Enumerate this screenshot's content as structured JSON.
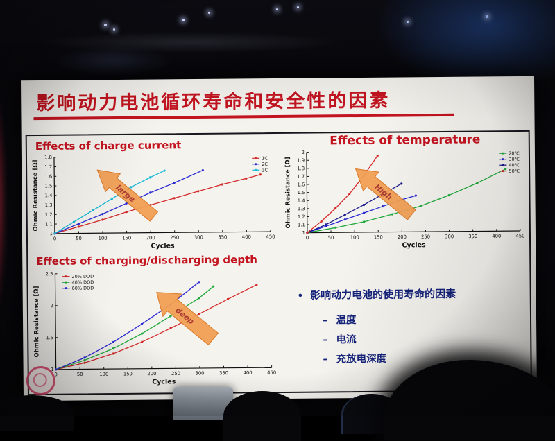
{
  "slide": {
    "title": "影响动力电池循环寿命和安全性的因素",
    "bullets": {
      "marker": "•",
      "dash": "–",
      "heading": "影响动力电池的使用寿命的因素",
      "items": [
        "温度",
        "电流",
        "充放电深度"
      ]
    }
  },
  "chart_data": [
    {
      "type": "line",
      "title": "Effects of charge current",
      "xlabel": "Cycles",
      "ylabel": "Ohmic Resistance [Ω]",
      "xlim": [
        0,
        450
      ],
      "ylim": [
        1,
        1.8
      ],
      "x_tick_step": 50,
      "y_tick_step": 0.1,
      "legend_position": "top-right",
      "grid": false,
      "arrow": {
        "label": "large",
        "fill": "#f2a055",
        "stroke": "#d9731f",
        "text_color": "#a8322a"
      },
      "series": [
        {
          "name": "1C",
          "color": "#d42a2a",
          "points": [
            [
              0,
              1
            ],
            [
              50,
              1.07
            ],
            [
              100,
              1.14
            ],
            [
              150,
              1.22
            ],
            [
              200,
              1.29
            ],
            [
              250,
              1.36
            ],
            [
              300,
              1.43
            ],
            [
              350,
              1.5
            ],
            [
              400,
              1.56
            ],
            [
              430,
              1.6
            ]
          ]
        },
        {
          "name": "2C",
          "color": "#2a2ad4",
          "points": [
            [
              0,
              1
            ],
            [
              50,
              1.1
            ],
            [
              100,
              1.2
            ],
            [
              150,
              1.31
            ],
            [
              200,
              1.42
            ],
            [
              250,
              1.52
            ],
            [
              310,
              1.65
            ]
          ]
        },
        {
          "name": "3C",
          "color": "#18b8d8",
          "points": [
            [
              0,
              1
            ],
            [
              40,
              1.12
            ],
            [
              80,
              1.24
            ],
            [
              120,
              1.36
            ],
            [
              160,
              1.48
            ],
            [
              200,
              1.58
            ],
            [
              230,
              1.65
            ]
          ]
        }
      ]
    },
    {
      "type": "line",
      "title": "Effects of temperature",
      "xlabel": "Cycles",
      "ylabel": "Ohmic Resistance [Ω]",
      "xlim": [
        0,
        450
      ],
      "ylim": [
        1,
        2
      ],
      "x_tick_step": 50,
      "y_tick_step": 0.1,
      "legend_position": "top-right",
      "grid": false,
      "arrow": {
        "label": "High",
        "fill": "#f2a055",
        "stroke": "#d9731f",
        "text_color": "#a8322a"
      },
      "series": [
        {
          "name": "20℃",
          "color": "#1faa3c",
          "points": [
            [
              0,
              1
            ],
            [
              60,
              1.06
            ],
            [
              120,
              1.13
            ],
            [
              180,
              1.22
            ],
            [
              240,
              1.32
            ],
            [
              300,
              1.45
            ],
            [
              360,
              1.6
            ],
            [
              420,
              1.77
            ]
          ]
        },
        {
          "name": "30℃",
          "color": "#2a2ad4",
          "points": [
            [
              0,
              1
            ],
            [
              40,
              1.08
            ],
            [
              80,
              1.16
            ],
            [
              120,
              1.24
            ],
            [
              160,
              1.32
            ],
            [
              200,
              1.4
            ],
            [
              230,
              1.45
            ]
          ]
        },
        {
          "name": "40℃",
          "color": "#1a1a8c",
          "points": [
            [
              0,
              1
            ],
            [
              40,
              1.1
            ],
            [
              80,
              1.22
            ],
            [
              120,
              1.34
            ],
            [
              160,
              1.47
            ],
            [
              200,
              1.6
            ]
          ]
        },
        {
          "name": "50℃",
          "color": "#d42a2a",
          "points": [
            [
              0,
              1
            ],
            [
              30,
              1.14
            ],
            [
              60,
              1.3
            ],
            [
              90,
              1.48
            ],
            [
              120,
              1.7
            ],
            [
              150,
              1.95
            ]
          ]
        }
      ]
    },
    {
      "type": "line",
      "title": "Effects of charging/discharging depth",
      "xlabel": "Cycles",
      "ylabel": "Ohmic Resistance [Ω]",
      "xlim": [
        0,
        450
      ],
      "ylim": [
        1,
        2.5
      ],
      "x_tick_step": 50,
      "y_tick_step": 0.5,
      "legend_position": "top-left",
      "grid": false,
      "arrow": {
        "label": "deep",
        "fill": "#f2a055",
        "stroke": "#d9731f",
        "text_color": "#a8322a"
      },
      "series": [
        {
          "name": "20% DOD",
          "color": "#d42a2a",
          "points": [
            [
              0,
              1
            ],
            [
              60,
              1.1
            ],
            [
              120,
              1.24
            ],
            [
              180,
              1.42
            ],
            [
              240,
              1.63
            ],
            [
              300,
              1.85
            ],
            [
              360,
              2.08
            ],
            [
              420,
              2.3
            ]
          ]
        },
        {
          "name": "40% DOD",
          "color": "#1faa3c",
          "points": [
            [
              0,
              1
            ],
            [
              60,
              1.14
            ],
            [
              120,
              1.32
            ],
            [
              180,
              1.55
            ],
            [
              240,
              1.82
            ],
            [
              300,
              2.1
            ],
            [
              330,
              2.28
            ]
          ]
        },
        {
          "name": "60% DOD",
          "color": "#2a2ad4",
          "points": [
            [
              0,
              1
            ],
            [
              60,
              1.18
            ],
            [
              120,
              1.42
            ],
            [
              180,
              1.7
            ],
            [
              240,
              2.0
            ],
            [
              300,
              2.35
            ]
          ]
        }
      ]
    }
  ]
}
